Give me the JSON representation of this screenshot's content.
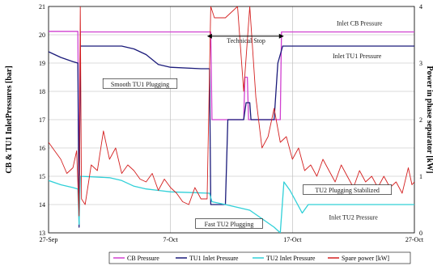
{
  "chart_data": {
    "type": "line",
    "title": "",
    "ylabel": "CB & TU1 InletPressures [bar]",
    "y2label": "Power in phase separator [kW]",
    "xlabel": "",
    "ylim": [
      13,
      21
    ],
    "y2lim": [
      0,
      4
    ],
    "yticks": [
      "13",
      "14",
      "15",
      "16",
      "17",
      "18",
      "19",
      "20",
      "21"
    ],
    "y2ticks": [
      "0",
      "1",
      "2",
      "3",
      "4"
    ],
    "xticks": [
      {
        "label": "27-Sep",
        "day": 0
      },
      {
        "label": "7-Oct",
        "day": 10
      },
      {
        "label": "17-Oct",
        "day": 20
      },
      {
        "label": "27-Oct",
        "day": 30
      }
    ],
    "grid": true,
    "legend_position": "bottom",
    "series": [
      {
        "name": "CB Pressure",
        "color": "#d040d0",
        "axis": "left",
        "points": [
          [
            0,
            20.12
          ],
          [
            2.4,
            20.12
          ],
          [
            2.5,
            14
          ],
          [
            2.6,
            20.1
          ],
          [
            13.3,
            20.1
          ],
          [
            13.4,
            17
          ],
          [
            16.0,
            17
          ],
          [
            16.1,
            18.5
          ],
          [
            16.3,
            18.5
          ],
          [
            16.4,
            17
          ],
          [
            19.0,
            17
          ],
          [
            19.1,
            20.1
          ],
          [
            30,
            20.1
          ]
        ]
      },
      {
        "name": "TU1 Inlet Pressure",
        "color": "#1a1a7a",
        "axis": "left",
        "points": [
          [
            0,
            19.4
          ],
          [
            1,
            19.2
          ],
          [
            2,
            19.05
          ],
          [
            2.4,
            19.0
          ],
          [
            2.5,
            13.2
          ],
          [
            2.6,
            19.6
          ],
          [
            6,
            19.6
          ],
          [
            7,
            19.5
          ],
          [
            8,
            19.3
          ],
          [
            9,
            18.95
          ],
          [
            10,
            18.85
          ],
          [
            12.5,
            18.8
          ],
          [
            13.2,
            18.8
          ],
          [
            13.3,
            14.0
          ],
          [
            14.5,
            14.0
          ],
          [
            14.7,
            17.0
          ],
          [
            16.0,
            17.0
          ],
          [
            16.2,
            17.6
          ],
          [
            16.5,
            17.6
          ],
          [
            16.6,
            17.0
          ],
          [
            18.5,
            17.0
          ],
          [
            18.8,
            19.0
          ],
          [
            19.2,
            19.6
          ],
          [
            30,
            19.6
          ]
        ]
      },
      {
        "name": "TU2 Inlet Pressure",
        "color": "#30d0d8",
        "axis": "left",
        "points": [
          [
            0,
            14.85
          ],
          [
            1,
            14.7
          ],
          [
            2,
            14.6
          ],
          [
            2.4,
            14.55
          ],
          [
            2.5,
            13.3
          ],
          [
            2.6,
            15.0
          ],
          [
            5,
            14.95
          ],
          [
            6,
            14.85
          ],
          [
            7,
            14.65
          ],
          [
            8,
            14.55
          ],
          [
            9,
            14.5
          ],
          [
            10,
            14.45
          ],
          [
            12,
            14.42
          ],
          [
            13.2,
            14.4
          ],
          [
            13.4,
            14.1
          ],
          [
            14.5,
            14.0
          ],
          [
            16.5,
            13.8
          ],
          [
            17.5,
            13.5
          ],
          [
            18.5,
            13.2
          ],
          [
            19.0,
            13.0
          ],
          [
            19.3,
            14.8
          ],
          [
            19.8,
            14.5
          ],
          [
            20.3,
            14.1
          ],
          [
            20.8,
            13.7
          ],
          [
            21.3,
            14.0
          ],
          [
            30,
            14.0
          ]
        ]
      },
      {
        "name": "Spare power [kW]",
        "color": "#d42020",
        "axis": "right",
        "points": [
          [
            0,
            1.6
          ],
          [
            0.5,
            1.45
          ],
          [
            1,
            1.3
          ],
          [
            1.5,
            1.05
          ],
          [
            2,
            1.15
          ],
          [
            2.3,
            1.45
          ],
          [
            2.5,
            0.3
          ],
          [
            2.6,
            4.0
          ],
          [
            2.7,
            0.6
          ],
          [
            3,
            0.5
          ],
          [
            3.5,
            1.2
          ],
          [
            4,
            1.1
          ],
          [
            4.5,
            1.8
          ],
          [
            5,
            1.3
          ],
          [
            5.5,
            1.5
          ],
          [
            6,
            1.05
          ],
          [
            6.5,
            1.2
          ],
          [
            7,
            1.1
          ],
          [
            7.5,
            0.95
          ],
          [
            8,
            0.9
          ],
          [
            8.5,
            1.05
          ],
          [
            9,
            0.75
          ],
          [
            9.5,
            0.95
          ],
          [
            10,
            0.8
          ],
          [
            10.5,
            0.7
          ],
          [
            11,
            0.55
          ],
          [
            11.5,
            0.5
          ],
          [
            12,
            0.8
          ],
          [
            12.5,
            0.6
          ],
          [
            13,
            0.6
          ],
          [
            13.3,
            4.0
          ],
          [
            13.6,
            3.8
          ],
          [
            14.5,
            3.8
          ],
          [
            15,
            3.9
          ],
          [
            15.5,
            4.0
          ],
          [
            16,
            2.5
          ],
          [
            16.5,
            4.0
          ],
          [
            17,
            2.4
          ],
          [
            17.5,
            1.5
          ],
          [
            18,
            1.7
          ],
          [
            18.5,
            2.2
          ],
          [
            19,
            1.6
          ],
          [
            19.5,
            1.7
          ],
          [
            20,
            1.3
          ],
          [
            20.5,
            1.5
          ],
          [
            21,
            1.1
          ],
          [
            21.5,
            1.2
          ],
          [
            22,
            1.0
          ],
          [
            22.5,
            1.3
          ],
          [
            23,
            1.1
          ],
          [
            23.5,
            0.9
          ],
          [
            24,
            1.2
          ],
          [
            24.5,
            1.0
          ],
          [
            25,
            0.8
          ],
          [
            25.5,
            1.1
          ],
          [
            26,
            0.9
          ],
          [
            26.5,
            1.0
          ],
          [
            27,
            0.8
          ],
          [
            27.5,
            1.0
          ],
          [
            28,
            0.8
          ],
          [
            28.5,
            0.9
          ],
          [
            29,
            0.7
          ],
          [
            29.5,
            1.15
          ],
          [
            29.8,
            0.85
          ],
          [
            30,
            0.9
          ]
        ]
      }
    ],
    "annotations": [
      {
        "text": "Inlet CB Pressure",
        "x": 25.5,
        "y": 20.4,
        "boxed": false
      },
      {
        "text": "Inlet TU1 Pressure",
        "x": 25.3,
        "y": 19.25,
        "boxed": false
      },
      {
        "text": "Technical Stop",
        "x": 16.2,
        "y": 19.78,
        "boxed": false
      },
      {
        "text": "Smooth TU1 Plugging",
        "x": 7.5,
        "y": 18.25,
        "boxed": true
      },
      {
        "text": "TU2 Plugging Stabilized",
        "x": 24.5,
        "y": 14.5,
        "boxed": true
      },
      {
        "text": "Fast TU2 Plugging",
        "x": 14.8,
        "y": 13.3,
        "boxed": true
      },
      {
        "text": "Inlet TU2 Pressure",
        "x": 25.0,
        "y": 13.55,
        "boxed": false
      }
    ]
  },
  "legend": {
    "items": [
      {
        "label": "CB Pressure",
        "color": "#d040d0"
      },
      {
        "label": "TU1 Inlet Pressure",
        "color": "#1a1a7a"
      },
      {
        "label": "TU2 Inlet Pressure",
        "color": "#30d0d8"
      },
      {
        "label": "Spare power [kW]",
        "color": "#d42020"
      }
    ]
  }
}
